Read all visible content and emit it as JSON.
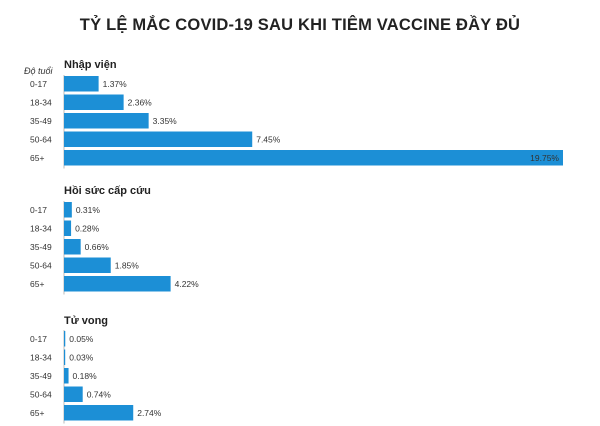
{
  "title": "TỶ LỆ MẮC COVID-19 SAU KHI TIÊM VACCINE ĐẦY ĐỦ",
  "axis_caption": "Độ tuổi",
  "colors": {
    "bar": "#1c8fd6",
    "value_label_inside": "#ffffff"
  },
  "chart_data": [
    {
      "type": "bar",
      "orientation": "horizontal",
      "title": "Nhập viện",
      "categories": [
        "0-17",
        "18-34",
        "35-49",
        "50-64",
        "65+"
      ],
      "values": [
        1.37,
        2.36,
        3.35,
        7.45,
        19.75
      ],
      "value_labels": [
        "1.37%",
        "2.36%",
        "3.35%",
        "7.45%",
        "19.75%"
      ],
      "xlim": [
        0,
        19.75
      ],
      "grid": false
    },
    {
      "type": "bar",
      "orientation": "horizontal",
      "title": "Hồi sức cấp cứu",
      "categories": [
        "0-17",
        "18-34",
        "35-49",
        "50-64",
        "65+"
      ],
      "values": [
        0.31,
        0.28,
        0.66,
        1.85,
        4.22
      ],
      "value_labels": [
        "0.31%",
        "0.28%",
        "0.66%",
        "1.85%",
        "4.22%"
      ],
      "xlim": [
        0,
        19.75
      ],
      "grid": false
    },
    {
      "type": "bar",
      "orientation": "horizontal",
      "title": "Tử vong",
      "categories": [
        "0-17",
        "18-34",
        "35-49",
        "50-64",
        "65+"
      ],
      "values": [
        0.05,
        0.03,
        0.18,
        0.74,
        2.74
      ],
      "value_labels": [
        "0.05%",
        "0.03%",
        "0.18%",
        "0.74%",
        "2.74%"
      ],
      "xlim": [
        0,
        19.75
      ],
      "grid": false
    }
  ]
}
